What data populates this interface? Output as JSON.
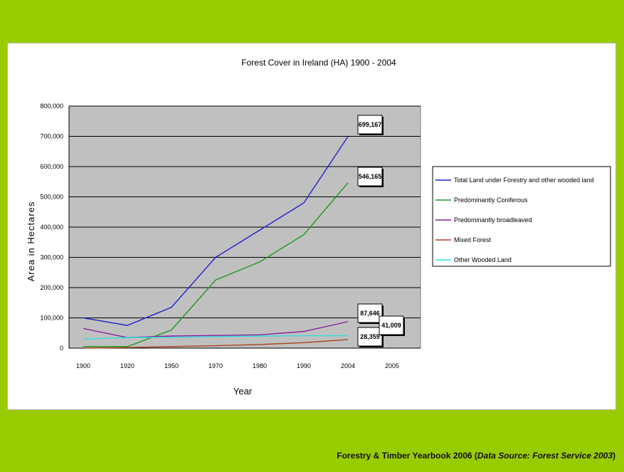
{
  "chart_data": {
    "type": "line",
    "title": "Forest Cover in Ireland (HA) 1900 - 2004",
    "xlabel": "Year",
    "ylabel": "Area in Hectares",
    "x": [
      1900,
      1920,
      1950,
      1970,
      1980,
      1990,
      2004
    ],
    "xticks": [
      "1900",
      "1920",
      "1950",
      "1970",
      "1980",
      "1990",
      "2004",
      "2005"
    ],
    "ylim": [
      0,
      800000
    ],
    "yticks": [
      "0",
      "100,000",
      "200,000",
      "300,000",
      "400,000",
      "500,000",
      "600,000",
      "700,000",
      "800,000"
    ],
    "grid": true,
    "legend": "right",
    "series": [
      {
        "name": "Total Land under Forestry and other wooded land",
        "color": "#2222cc",
        "values": [
          100000,
          75000,
          135000,
          300000,
          390000,
          480000,
          699167
        ]
      },
      {
        "name": "Predominantly Coniferous",
        "color": "#229922",
        "values": [
          5000,
          5000,
          60000,
          225000,
          285000,
          375000,
          546165
        ]
      },
      {
        "name": "Predominantly broadleaved",
        "color": "#882299",
        "values": [
          65000,
          35000,
          40000,
          42000,
          44000,
          55000,
          87646
        ]
      },
      {
        "name": "Mixed Forest",
        "color": "#aa4422",
        "values": [
          0,
          2000,
          5000,
          8000,
          12000,
          18000,
          28359
        ]
      },
      {
        "name": "Other Wooded Land",
        "color": "#33dddd",
        "values": [
          30000,
          35000,
          36000,
          38000,
          40000,
          41000,
          41009
        ]
      }
    ],
    "annotations": [
      {
        "text": "699,167",
        "series": 0
      },
      {
        "text": "546,165",
        "series": 1
      },
      {
        "text": "87,646",
        "series": 2
      },
      {
        "text": "28,359",
        "series": 3
      },
      {
        "text": "41,009",
        "series": 4
      }
    ]
  },
  "footer": {
    "prefix": "Forestry & Timber Yearbook 2006 (",
    "source": "Data Source: Forest Service 2003",
    "suffix": ")"
  }
}
